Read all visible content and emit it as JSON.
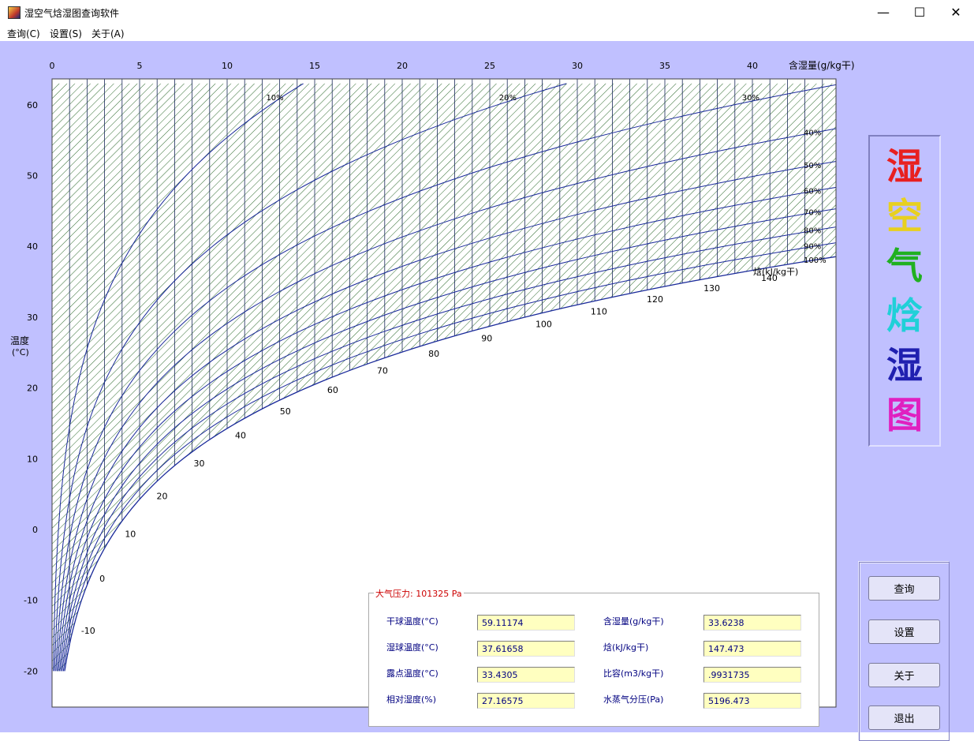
{
  "window": {
    "title": "湿空气焓湿图查询软件",
    "minimize_glyph": "—",
    "maximize_glyph": "☐",
    "close_glyph": "✕"
  },
  "menu": [
    "查询(C)",
    "设置(S)",
    "关于(A)"
  ],
  "chart": {
    "top_axis_label": "含湿量(g/kg干)",
    "left_axis_label_line1": "温度",
    "left_axis_label_line2": "(°C)",
    "enthalpy_label": "焓(kJ/kg干)",
    "rh_curve_labels": [
      "10%",
      "20%",
      "30%",
      "40%",
      "50%",
      "60%",
      "70%",
      "80%",
      "90%",
      "100%"
    ],
    "colors": {
      "hatch": "#2e6b2e",
      "curve": "#1a2a9a",
      "panel": "#c0c0ff"
    }
  },
  "chart_data": {
    "type": "line",
    "x_axis": {
      "label": "含湿量(g/kg干)",
      "ticks": [
        0,
        5,
        10,
        15,
        20,
        25,
        30,
        35,
        40
      ],
      "range": [
        0,
        45
      ]
    },
    "y_axis": {
      "label": "温度(°C)",
      "ticks": [
        -20,
        -10,
        0,
        10,
        20,
        30,
        40,
        50,
        60
      ],
      "range": [
        -22,
        63
      ]
    },
    "enthalpy_ticks": [
      -10,
      0,
      10,
      20,
      30,
      40,
      50,
      60,
      70,
      80,
      90,
      100,
      110,
      120,
      130,
      140
    ],
    "relative_humidity_curves": [
      10,
      20,
      30,
      40,
      50,
      60,
      70,
      80,
      90,
      100
    ]
  },
  "side_title_chars": [
    {
      "ch": "湿",
      "color": "#e82020"
    },
    {
      "ch": "空",
      "color": "#e8d020"
    },
    {
      "ch": "气",
      "color": "#20b020"
    },
    {
      "ch": "焓",
      "color": "#20d0d8"
    },
    {
      "ch": "湿",
      "color": "#2020b0"
    },
    {
      "ch": "图",
      "color": "#e020c0"
    }
  ],
  "buttons": {
    "query": "查询",
    "settings": "设置",
    "about": "关于",
    "exit": "退出"
  },
  "info": {
    "legend_prefix": "大气压力:",
    "pressure": "101325 Pa",
    "dry_bulb_label": "干球温度(°C)",
    "dry_bulb": "59.11174",
    "wet_bulb_label": "湿球温度(°C)",
    "wet_bulb": "37.61658",
    "dew_point_label": "露点温度(°C)",
    "dew_point": "33.4305",
    "rh_label": "相对湿度(%)",
    "rh": "27.16575",
    "humidity_label": "含湿量(g/kg干)",
    "humidity": "33.6238",
    "enthalpy_label": "焓(kJ/kg干)",
    "enthalpy": "147.473",
    "specific_volume_label": "比容(m3/kg干)",
    "specific_volume": ".9931735",
    "vapor_pressure_label": "水蒸气分压(Pa)",
    "vapor_pressure": "5196.473"
  }
}
